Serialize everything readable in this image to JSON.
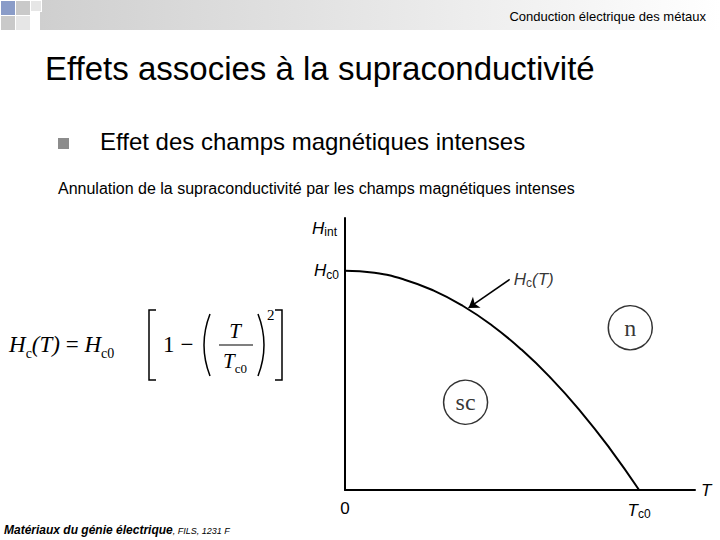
{
  "slide": {
    "header": "Conduction électrique des métaux",
    "title": "Effets associes à la supraconductivité",
    "bullet": "Effet des champs magnétiques intenses",
    "subtitle": "Annulation de la supraconductivité par les champs magnétiques intenses",
    "formula": {
      "lhs": [
        {
          "text": "H"
        },
        {
          "text": "c",
          "sub": true
        },
        {
          "text": "(T)"
        }
      ],
      "equals": "=",
      "factor": [
        {
          "text": "H"
        },
        {
          "text": "c0",
          "sub": true
        }
      ],
      "one": "1",
      "minus": "−",
      "numerator": "T",
      "denominator": [
        {
          "text": "T"
        },
        {
          "text": "c0",
          "sub": true
        }
      ],
      "exponent": "2"
    },
    "footer": {
      "source": "Matériaux du génie électrique",
      "details": ", FILS, 1231 F"
    }
  },
  "chart_data": {
    "type": "line",
    "x": [
      0,
      0.1,
      0.2,
      0.3,
      0.4,
      0.5,
      0.6,
      0.7,
      0.8,
      0.9,
      1.0
    ],
    "values": [
      1.0,
      0.99,
      0.96,
      0.91,
      0.84,
      0.75,
      0.64,
      0.51,
      0.36,
      0.19,
      0
    ],
    "color": "#000000",
    "xlabel": [
      {
        "text": "T"
      }
    ],
    "ylabel": [
      {
        "text": "H"
      },
      {
        "text": "int",
        "sub": true
      }
    ],
    "xlim": [
      0,
      1.19
    ],
    "ylim": [
      0,
      1.24
    ],
    "xticks": [
      0,
      {
        "value": 1,
        "label": [
          {
            "text": "T"
          },
          {
            "text": "c0",
            "sub": true
          }
        ]
      }
    ],
    "yticks": [
      {
        "value": 1,
        "label": [
          {
            "text": "H"
          },
          {
            "text": "c0",
            "sub": true
          }
        ]
      }
    ],
    "grid": false,
    "annotations": [
      {
        "text": [
          {
            "text": "H"
          },
          {
            "text": "c",
            "sub": true
          },
          {
            "text": "(T)"
          }
        ],
        "x": 0.56,
        "y": 0.96,
        "arrow_to": [
          0.42,
          0.83
        ]
      }
    ],
    "regions": [
      {
        "text": "n",
        "x": 0.97,
        "y": 0.74
      },
      {
        "text": "sc",
        "x": 0.41,
        "y": 0.4
      }
    ]
  }
}
